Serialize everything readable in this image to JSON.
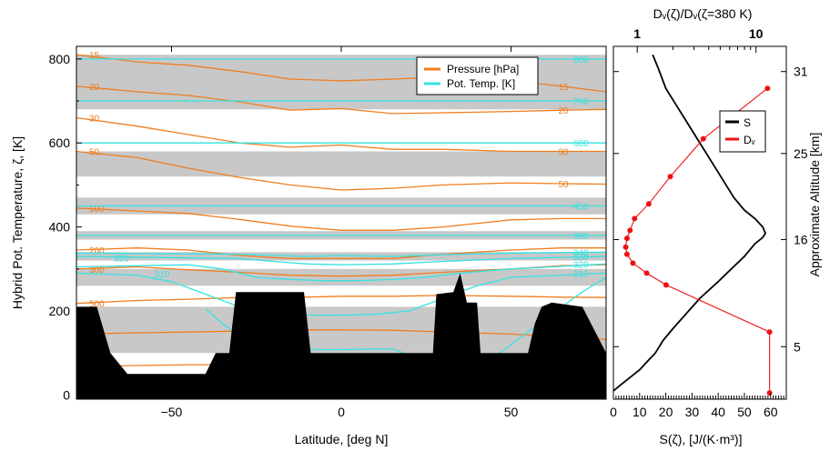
{
  "chart_data": [
    {
      "type": "line",
      "panel": "cross-section",
      "xlabel": "Latitude, [deg N]",
      "ylabel": "Hybrid Pot. Temperature, ζ, [K]",
      "xlim": [
        -78,
        78
      ],
      "ylim": [
        -10,
        830
      ],
      "xticks": [
        -50,
        0,
        50
      ],
      "xtick_labels": [
        "−50",
        "0",
        "50"
      ],
      "yticks": [
        0,
        200,
        400,
        600,
        800
      ],
      "ytick_labels": [
        "0",
        "200",
        "400",
        "600",
        "800"
      ],
      "legend": {
        "position": "top-right",
        "entries": [
          {
            "label": "Pressure [hPa]",
            "color": "#f07d1e"
          },
          {
            "label": "Pot. Temp. [K]",
            "color": "#36e2e2"
          }
        ]
      },
      "shaded_bands": [
        [
          100,
          210
        ],
        [
          260,
          300
        ],
        [
          320,
          340
        ],
        [
          370,
          390
        ],
        [
          430,
          470
        ],
        [
          520,
          580
        ],
        [
          680,
          810
        ]
      ],
      "topography": {
        "x": [
          -78,
          -72,
          -68,
          -63,
          -40,
          -37,
          -33,
          -31,
          -11,
          -9,
          -7,
          27,
          28,
          33,
          35,
          37,
          40,
          41,
          43,
          52,
          55,
          57,
          59,
          62,
          71,
          78
        ],
        "y": [
          210,
          210,
          100,
          50,
          50,
          100,
          100,
          245,
          245,
          100,
          100,
          100,
          240,
          245,
          290,
          220,
          220,
          100,
          100,
          100,
          100,
          170,
          210,
          220,
          210,
          100
        ]
      },
      "pressure_contours": [
        {
          "label": "15",
          "x": [
            -78,
            -60,
            -45,
            -30,
            -15,
            0,
            15,
            30,
            50,
            65,
            78
          ],
          "y": [
            810,
            793,
            785,
            770,
            752,
            748,
            752,
            757,
            748,
            735,
            722
          ]
        },
        {
          "label": "20",
          "x": [
            -78,
            -60,
            -45,
            -30,
            -15,
            0,
            15,
            30,
            50,
            65,
            78
          ],
          "y": [
            735,
            722,
            713,
            698,
            678,
            682,
            670,
            672,
            675,
            678,
            680
          ]
        },
        {
          "label": "30",
          "x": [
            -78,
            -60,
            -45,
            -30,
            -15,
            0,
            15,
            30,
            50,
            65,
            78
          ],
          "y": [
            660,
            640,
            620,
            600,
            590,
            595,
            585,
            585,
            580,
            580,
            580
          ]
        },
        {
          "label": "50",
          "x": [
            -78,
            -60,
            -45,
            -30,
            -15,
            0,
            15,
            30,
            50,
            65,
            78
          ],
          "y": [
            580,
            565,
            540,
            518,
            500,
            488,
            492,
            500,
            505,
            503,
            502
          ]
        },
        {
          "label": "100",
          "x": [
            -78,
            -60,
            -45,
            -30,
            -15,
            0,
            15,
            30,
            50,
            65,
            78
          ],
          "y": [
            445,
            438,
            432,
            418,
            402,
            392,
            392,
            400,
            417,
            420,
            420
          ]
        },
        {
          "label": "200",
          "x": [
            -78,
            -60,
            -45,
            -30,
            -15,
            0,
            15,
            30,
            50,
            65,
            78
          ],
          "y": [
            345,
            350,
            345,
            332,
            325,
            325,
            325,
            335,
            345,
            350,
            350
          ]
        },
        {
          "label": "300",
          "x": [
            -78,
            -60,
            -45,
            -30,
            -15,
            0,
            15,
            30,
            50,
            65,
            78
          ],
          "y": [
            300,
            305,
            298,
            292,
            285,
            283,
            285,
            292,
            300,
            308,
            310
          ]
        },
        {
          "label": "500",
          "x": [
            -78,
            -60,
            -45,
            -30,
            -15,
            0,
            15,
            30,
            50,
            65,
            78
          ],
          "y": [
            218,
            225,
            228,
            232,
            232,
            235,
            235,
            237,
            235,
            233,
            232
          ]
        },
        {
          "label": "700",
          "x": [
            -78,
            -60,
            -45,
            -30,
            -15,
            0,
            15,
            30,
            50,
            65,
            78
          ],
          "y": [
            145,
            148,
            150,
            152,
            155,
            155,
            154,
            150,
            145,
            138,
            132
          ]
        },
        {
          "label": "850",
          "x": [
            -78,
            -60,
            -45,
            -30,
            -15,
            0,
            15,
            30,
            50,
            65,
            78
          ],
          "y": [
            68,
            70,
            72,
            72,
            73,
            73,
            72,
            70,
            68,
            66,
            64
          ]
        }
      ],
      "theta_contours": [
        {
          "label": "800",
          "x": [
            -78,
            78
          ],
          "y": [
            800,
            800
          ]
        },
        {
          "label": "700",
          "x": [
            -78,
            78
          ],
          "y": [
            700,
            700
          ]
        },
        {
          "label": "600",
          "x": [
            -78,
            78
          ],
          "y": [
            600,
            600
          ]
        },
        {
          "label": "450",
          "x": [
            -78,
            78
          ],
          "y": [
            450,
            450
          ]
        },
        {
          "label": "380",
          "x": [
            -78,
            78
          ],
          "y": [
            380,
            380
          ]
        },
        {
          "label": "340",
          "x": [
            -78,
            -30,
            -10,
            0,
            15,
            30,
            50,
            78
          ],
          "y": [
            338,
            335,
            330,
            332,
            330,
            334,
            338,
            340
          ]
        },
        {
          "label": "330",
          "x": [
            -78,
            -30,
            -20,
            -10,
            0,
            15,
            30,
            50,
            78
          ],
          "y": [
            330,
            325,
            318,
            312,
            310,
            312,
            318,
            325,
            330
          ]
        },
        {
          "label": "320",
          "x": [
            -78,
            -45,
            -35,
            -25,
            -15,
            -5,
            5,
            15,
            25,
            35,
            50,
            78
          ],
          "y": [
            305,
            310,
            300,
            280,
            275,
            272,
            272,
            275,
            280,
            290,
            300,
            312
          ]
        },
        {
          "label": "310",
          "x": [
            -78,
            -60,
            -50,
            -40,
            -30,
            -20,
            -10,
            0,
            10,
            20,
            30,
            40,
            50,
            78
          ],
          "y": [
            290,
            285,
            270,
            240,
            210,
            195,
            190,
            190,
            192,
            200,
            230,
            260,
            280,
            290
          ]
        },
        {
          "label": "300",
          "x": [
            -40,
            -35,
            -30,
            -25,
            -20,
            -15,
            -10,
            0,
            15,
            20,
            25,
            30,
            35,
            45,
            55,
            70,
            78
          ],
          "y": [
            205,
            170,
            140,
            125,
            115,
            110,
            108,
            108,
            110,
            95,
            70,
            50,
            40,
            90,
            150,
            240,
            280
          ]
        }
      ]
    },
    {
      "type": "line",
      "panel": "profile",
      "xlabel": "S(ζ), [J/(K·m³)]",
      "top_xlabel": "Dᵥ(ζ)/Dᵥ(ζ=380 K)",
      "right_ylabel": "Approximate Altitude [km]",
      "xlim": [
        0,
        66
      ],
      "xticks": [
        0,
        10,
        20,
        30,
        40,
        50,
        60
      ],
      "xtick_labels": [
        "0",
        "10",
        "20",
        "30",
        "40",
        "50",
        "60"
      ],
      "top_xlim_log": [
        0.63,
        18
      ],
      "top_xtick_labels": [
        {
          "value": 1,
          "label": "1"
        },
        {
          "value": 10,
          "label": "10"
        }
      ],
      "right_yticks": [
        {
          "zeta": 115,
          "label": "5"
        },
        {
          "zeta": 370,
          "label": "16"
        },
        {
          "zeta": 575,
          "label": "25"
        },
        {
          "zeta": 770,
          "label": "31"
        }
      ],
      "legend": {
        "position": "upper-right",
        "entries": [
          {
            "label": "S",
            "color": "#000000"
          },
          {
            "label": "Dᵥ",
            "color": "#ee1111"
          }
        ]
      },
      "series": [
        {
          "name": "S",
          "color": "#000000",
          "x": [
            0,
            3,
            7,
            10,
            13,
            16,
            19,
            23,
            28,
            33,
            40,
            45,
            50,
            54,
            57,
            58,
            57,
            54,
            50,
            46,
            42,
            37,
            32,
            28,
            24,
            20,
            17,
            15
          ],
          "y": [
            10,
            25,
            45,
            60,
            80,
            100,
            130,
            160,
            195,
            230,
            270,
            300,
            330,
            360,
            375,
            385,
            400,
            420,
            440,
            470,
            510,
            560,
            610,
            650,
            690,
            730,
            780,
            810
          ]
        },
        {
          "name": "Dᵥ",
          "color": "#ee1111",
          "log_x": true,
          "x": [
            13,
            13,
            1.75,
            1.2,
            0.92,
            0.82,
            0.8,
            0.82,
            0.87,
            0.95,
            1.25,
            1.9,
            3.6,
            12.5
          ],
          "y": [
            5,
            150,
            262,
            290,
            314,
            335,
            352,
            373,
            392,
            420,
            455,
            520,
            610,
            730
          ]
        }
      ]
    }
  ]
}
